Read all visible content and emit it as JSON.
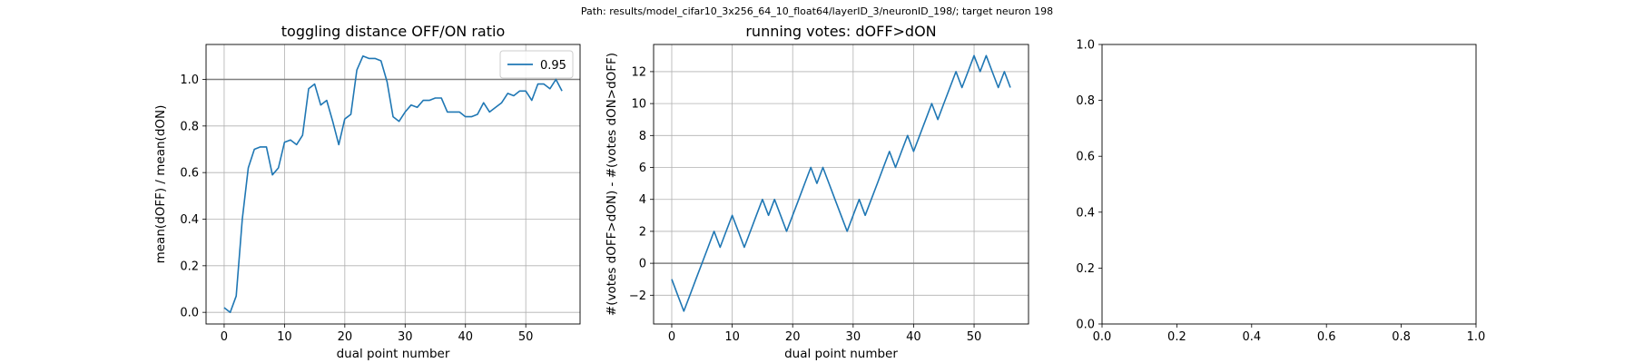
{
  "suptitle": "Path: results/model_cifar10_3x256_64_10_float64/layerID_3/neuronID_198/; target neuron 198",
  "colors": {
    "line": "#1f77b4",
    "reference": "#808080",
    "grid": "#b0b0b0",
    "axes": "#000000"
  },
  "chart_data": [
    {
      "type": "line",
      "title": "toggling distance OFF/ON ratio",
      "xlabel": "dual point number",
      "ylabel": "mean(dOFF) / mean(dON)",
      "xlim": [
        -3,
        59
      ],
      "ylim": [
        -0.05,
        1.15
      ],
      "xticks": [
        0,
        10,
        20,
        30,
        40,
        50
      ],
      "yticks": [
        0.0,
        0.2,
        0.4,
        0.6,
        0.8,
        1.0
      ],
      "xtick_labels": [
        "0",
        "10",
        "20",
        "30",
        "40",
        "50"
      ],
      "ytick_labels": [
        "0.0",
        "0.2",
        "0.4",
        "0.6",
        "0.8",
        "1.0"
      ],
      "grid": true,
      "reference_line": 1.0,
      "legend": {
        "placement": "upper right",
        "entries": [
          "0.95"
        ]
      },
      "series": [
        {
          "name": "0.95",
          "x": [
            0,
            1,
            2,
            3,
            4,
            5,
            6,
            7,
            8,
            9,
            10,
            11,
            12,
            13,
            14,
            15,
            16,
            17,
            18,
            19,
            20,
            21,
            22,
            23,
            24,
            25,
            26,
            27,
            28,
            29,
            30,
            31,
            32,
            33,
            34,
            35,
            36,
            37,
            38,
            39,
            40,
            41,
            42,
            43,
            44,
            45,
            46,
            47,
            48,
            49,
            50,
            51,
            52,
            53,
            54,
            55,
            56
          ],
          "y": [
            0.02,
            0.0,
            0.07,
            0.4,
            0.62,
            0.7,
            0.71,
            0.71,
            0.59,
            0.62,
            0.73,
            0.74,
            0.72,
            0.76,
            0.96,
            0.98,
            0.89,
            0.91,
            0.82,
            0.72,
            0.83,
            0.85,
            1.04,
            1.1,
            1.09,
            1.09,
            1.08,
            0.99,
            0.84,
            0.82,
            0.86,
            0.89,
            0.88,
            0.91,
            0.91,
            0.92,
            0.92,
            0.86,
            0.86,
            0.86,
            0.84,
            0.84,
            0.85,
            0.9,
            0.86,
            0.88,
            0.9,
            0.94,
            0.93,
            0.95,
            0.95,
            0.91,
            0.98,
            0.98,
            0.96,
            1.0,
            0.95
          ]
        }
      ]
    },
    {
      "type": "line",
      "title": "running votes: dOFF>dON",
      "xlabel": "dual point number",
      "ylabel": "#(votes dOFF>dON) - #(votes dON>dOFF)",
      "xlim": [
        -3,
        59
      ],
      "ylim": [
        -3.8,
        13.7
      ],
      "xticks": [
        0,
        10,
        20,
        30,
        40,
        50
      ],
      "yticks": [
        -2,
        0,
        2,
        4,
        6,
        8,
        10,
        12
      ],
      "xtick_labels": [
        "0",
        "10",
        "20",
        "30",
        "40",
        "50"
      ],
      "ytick_labels": [
        "−2",
        "0",
        "2",
        "4",
        "6",
        "8",
        "10",
        "12"
      ],
      "grid": true,
      "reference_line": 0,
      "series": [
        {
          "x": [
            0,
            1,
            2,
            3,
            4,
            5,
            6,
            7,
            8,
            9,
            10,
            11,
            12,
            13,
            14,
            15,
            16,
            17,
            18,
            19,
            20,
            21,
            22,
            23,
            24,
            25,
            26,
            27,
            28,
            29,
            30,
            31,
            32,
            33,
            34,
            35,
            36,
            37,
            38,
            39,
            40,
            41,
            42,
            43,
            44,
            45,
            46,
            47,
            48,
            49,
            50,
            51,
            52,
            53,
            54,
            55,
            56
          ],
          "y": [
            -1,
            -2,
            -3,
            -2,
            -1,
            0,
            1,
            2,
            1,
            2,
            3,
            2,
            1,
            2,
            3,
            4,
            3,
            4,
            3,
            2,
            3,
            4,
            5,
            6,
            5,
            6,
            5,
            4,
            3,
            2,
            3,
            4,
            3,
            4,
            5,
            6,
            7,
            6,
            7,
            8,
            7,
            8,
            9,
            10,
            9,
            10,
            11,
            12,
            11,
            12,
            13,
            12,
            13,
            12,
            11,
            12,
            11
          ]
        }
      ]
    },
    {
      "type": "line",
      "title": "",
      "xlabel": "",
      "ylabel": "",
      "xlim": [
        0,
        1
      ],
      "ylim": [
        0,
        1
      ],
      "xticks": [
        0.0,
        0.2,
        0.4,
        0.6,
        0.8,
        1.0
      ],
      "yticks": [
        0.0,
        0.2,
        0.4,
        0.6,
        0.8,
        1.0
      ],
      "xtick_labels": [
        "0.0",
        "0.2",
        "0.4",
        "0.6",
        "0.8",
        "1.0"
      ],
      "ytick_labels": [
        "0.0",
        "0.2",
        "0.4",
        "0.6",
        "0.8",
        "1.0"
      ],
      "grid": false,
      "series": []
    }
  ]
}
